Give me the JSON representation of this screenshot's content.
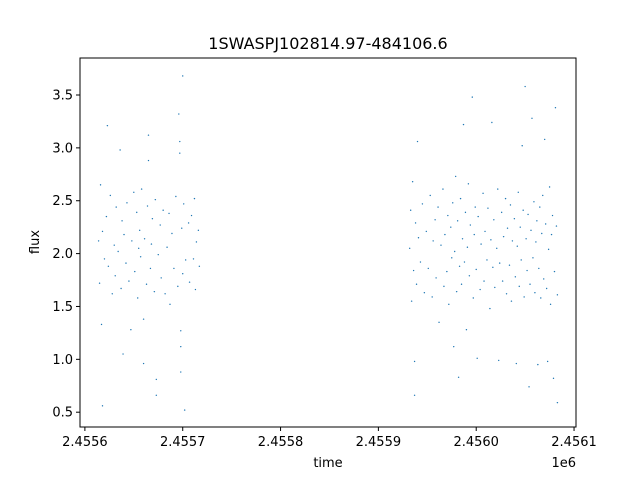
{
  "chart_data": {
    "type": "scatter",
    "title": "1SWASPJ102814.97-484106.6",
    "xlabel": "time",
    "ylabel": "flux",
    "x_offset_label": "1e6",
    "xlim": [
      2455595,
      2456102
    ],
    "ylim": [
      0.36,
      3.85
    ],
    "x_ticks": [
      2455600,
      2455700,
      2455800,
      2455900,
      2456000,
      2456100
    ],
    "x_tick_labels": [
      "2.4556",
      "2.4557",
      "2.4558",
      "2.4559",
      "2.4560",
      "2.4561"
    ],
    "y_ticks": [
      0.5,
      1.0,
      1.5,
      2.0,
      2.5,
      3.0,
      3.5
    ],
    "y_tick_labels": [
      "0.5",
      "1.0",
      "1.5",
      "2.0",
      "2.5",
      "3.0",
      "3.5"
    ],
    "grid": false,
    "legend": "none",
    "marker_color": "#1f77b4",
    "series": [
      {
        "values": [
          [
            2455614,
            2.12
          ],
          [
            2455615,
            1.72
          ],
          [
            2455616,
            2.65
          ],
          [
            2455617,
            1.33
          ],
          [
            2455618,
            2.21
          ],
          [
            2455618,
            0.56
          ],
          [
            2455620,
            1.95
          ],
          [
            2455622,
            2.35
          ],
          [
            2455623,
            3.21
          ],
          [
            2455624,
            1.88
          ],
          [
            2455626,
            2.55
          ],
          [
            2455628,
            1.62
          ],
          [
            2455630,
            2.08
          ],
          [
            2455631,
            1.79
          ],
          [
            2455632,
            2.44
          ],
          [
            2455634,
            2.02
          ],
          [
            2455636,
            2.98
          ],
          [
            2455637,
            1.67
          ],
          [
            2455638,
            2.31
          ],
          [
            2455639,
            1.05
          ],
          [
            2455640,
            2.18
          ],
          [
            2455642,
            1.91
          ],
          [
            2455643,
            2.48
          ],
          [
            2455645,
            1.74
          ],
          [
            2455647,
            1.28
          ],
          [
            2455648,
            2.12
          ],
          [
            2455650,
            2.58
          ],
          [
            2455651,
            1.83
          ],
          [
            2455653,
            2.39
          ],
          [
            2455654,
            1.58
          ],
          [
            2455655,
            2.05
          ],
          [
            2455656,
            2.22
          ],
          [
            2455657,
            1.97
          ],
          [
            2455658,
            2.61
          ],
          [
            2455660,
            1.38
          ],
          [
            2455660,
            0.96
          ],
          [
            2455661,
            2.14
          ],
          [
            2455663,
            1.71
          ],
          [
            2455664,
            2.45
          ],
          [
            2455665,
            3.12
          ],
          [
            2455665,
            2.88
          ],
          [
            2455667,
            1.86
          ],
          [
            2455668,
            2.09
          ],
          [
            2455669,
            2.33
          ],
          [
            2455671,
            1.64
          ],
          [
            2455672,
            2.51
          ],
          [
            2455673,
            0.81
          ],
          [
            2455673,
            0.66
          ],
          [
            2455675,
            1.99
          ],
          [
            2455677,
            2.27
          ],
          [
            2455678,
            1.77
          ],
          [
            2455680,
            2.41
          ],
          [
            2455682,
            1.62
          ],
          [
            2455684,
            2.06
          ],
          [
            2455686,
            2.38
          ],
          [
            2455687,
            1.52
          ],
          [
            2455689,
            2.19
          ],
          [
            2455691,
            1.86
          ],
          [
            2455693,
            2.54
          ],
          [
            2455695,
            1.69
          ],
          [
            2455696,
            3.32
          ],
          [
            2455697,
            3.06
          ],
          [
            2455697,
            2.95
          ],
          [
            2455698,
            1.27
          ],
          [
            2455698,
            0.88
          ],
          [
            2455698,
            1.12
          ],
          [
            2455699,
            2.24
          ],
          [
            2455700,
            1.81
          ],
          [
            2455700,
            3.68
          ],
          [
            2455701,
            2.47
          ],
          [
            2455702,
            0.52
          ],
          [
            2455703,
            1.94
          ],
          [
            2455706,
            2.29
          ],
          [
            2455707,
            1.73
          ],
          [
            2455709,
            2.36
          ],
          [
            2455711,
            1.95
          ],
          [
            2455712,
            2.52
          ],
          [
            2455713,
            1.66
          ],
          [
            2455714,
            2.11
          ],
          [
            2455716,
            2.22
          ],
          [
            2455717,
            1.88
          ],
          [
            2455932,
            2.05
          ],
          [
            2455933,
            2.41
          ],
          [
            2455934,
            1.55
          ],
          [
            2455935,
            2.68
          ],
          [
            2455936,
            1.84
          ],
          [
            2455937,
            0.98
          ],
          [
            2455937,
            0.66
          ],
          [
            2455938,
            2.29
          ],
          [
            2455939,
            1.71
          ],
          [
            2455940,
            3.06
          ],
          [
            2455941,
            2.15
          ],
          [
            2455943,
            1.92
          ],
          [
            2455945,
            2.47
          ],
          [
            2455947,
            1.63
          ],
          [
            2455949,
            2.21
          ],
          [
            2455951,
            1.86
          ],
          [
            2455953,
            2.55
          ],
          [
            2455955,
            1.59
          ],
          [
            2455956,
            2.12
          ],
          [
            2455958,
            2.32
          ],
          [
            2455959,
            1.77
          ],
          [
            2455961,
            2.44
          ],
          [
            2455962,
            1.35
          ],
          [
            2455964,
            2.08
          ],
          [
            2455966,
            2.61
          ],
          [
            2455967,
            1.69
          ],
          [
            2455968,
            2.18
          ],
          [
            2455970,
            1.83
          ],
          [
            2455971,
            2.36
          ],
          [
            2455972,
            1.52
          ],
          [
            2455974,
            2.25
          ],
          [
            2455975,
            1.96
          ],
          [
            2455976,
            2.48
          ],
          [
            2455977,
            1.12
          ],
          [
            2455978,
            2.02
          ],
          [
            2455979,
            2.73
          ],
          [
            2455980,
            1.64
          ],
          [
            2455981,
            2.31
          ],
          [
            2455982,
            0.83
          ],
          [
            2455983,
            1.88
          ],
          [
            2455984,
            2.52
          ],
          [
            2455985,
            1.71
          ],
          [
            2455986,
            2.14
          ],
          [
            2455987,
            3.22
          ],
          [
            2455988,
            1.92
          ],
          [
            2455989,
            2.39
          ],
          [
            2455990,
            1.28
          ],
          [
            2455991,
            2.06
          ],
          [
            2455992,
            2.66
          ],
          [
            2455993,
            1.79
          ],
          [
            2455994,
            2.27
          ],
          [
            2455996,
            3.48
          ],
          [
            2455997,
            1.58
          ],
          [
            2455998,
            2.18
          ],
          [
            2455999,
            2.44
          ],
          [
            2456000,
            1.85
          ],
          [
            2456001,
            1.01
          ],
          [
            2456002,
            2.35
          ],
          [
            2456004,
            1.66
          ],
          [
            2456005,
            2.09
          ],
          [
            2456007,
            2.57
          ],
          [
            2456008,
            1.74
          ],
          [
            2456009,
            2.21
          ],
          [
            2456011,
            1.94
          ],
          [
            2456012,
            2.43
          ],
          [
            2456014,
            1.48
          ],
          [
            2456015,
            2.13
          ],
          [
            2456016,
            3.24
          ],
          [
            2456017,
            1.87
          ],
          [
            2456018,
            2.32
          ],
          [
            2456019,
            1.68
          ],
          [
            2456021,
            2.05
          ],
          [
            2456022,
            2.61
          ],
          [
            2456023,
            0.99
          ],
          [
            2456024,
            1.91
          ],
          [
            2456026,
            2.39
          ],
          [
            2456027,
            1.74
          ],
          [
            2456028,
            2.16
          ],
          [
            2456030,
            2.52
          ],
          [
            2456031,
            1.62
          ],
          [
            2456032,
            2.24
          ],
          [
            2456034,
            1.89
          ],
          [
            2456035,
            2.46
          ],
          [
            2456036,
            1.55
          ],
          [
            2456037,
            2.12
          ],
          [
            2456039,
            2.33
          ],
          [
            2456040,
            1.78
          ],
          [
            2456041,
            0.96
          ],
          [
            2456042,
            2.07
          ],
          [
            2456043,
            2.58
          ],
          [
            2456044,
            1.69
          ],
          [
            2456045,
            2.25
          ],
          [
            2456046,
            1.94
          ],
          [
            2456047,
            3.02
          ],
          [
            2456048,
            2.41
          ],
          [
            2456049,
            1.59
          ],
          [
            2456050,
            3.58
          ],
          [
            2456051,
            2.14
          ],
          [
            2456052,
            1.84
          ],
          [
            2456053,
            2.37
          ],
          [
            2456054,
            0.74
          ],
          [
            2456055,
            1.71
          ],
          [
            2456056,
            2.22
          ],
          [
            2456057,
            3.28
          ],
          [
            2456058,
            1.96
          ],
          [
            2456059,
            2.49
          ],
          [
            2456060,
            1.63
          ],
          [
            2456061,
            2.11
          ],
          [
            2456062,
            2.31
          ],
          [
            2456063,
            0.95
          ],
          [
            2456064,
            1.86
          ],
          [
            2456065,
            2.44
          ],
          [
            2456066,
            1.58
          ],
          [
            2456067,
            2.19
          ],
          [
            2456068,
            2.55
          ],
          [
            2456069,
            1.76
          ],
          [
            2456070,
            3.08
          ],
          [
            2456071,
            2.28
          ],
          [
            2456072,
            1.67
          ],
          [
            2456073,
            0.98
          ],
          [
            2456074,
            2.04
          ],
          [
            2456075,
            2.63
          ],
          [
            2456076,
            1.52
          ],
          [
            2456077,
            2.18
          ],
          [
            2456078,
            2.36
          ],
          [
            2456079,
            0.82
          ],
          [
            2456080,
            1.83
          ],
          [
            2456081,
            3.38
          ],
          [
            2456082,
            2.26
          ],
          [
            2456083,
            1.61
          ],
          [
            2456083,
            0.59
          ]
        ]
      }
    ]
  }
}
